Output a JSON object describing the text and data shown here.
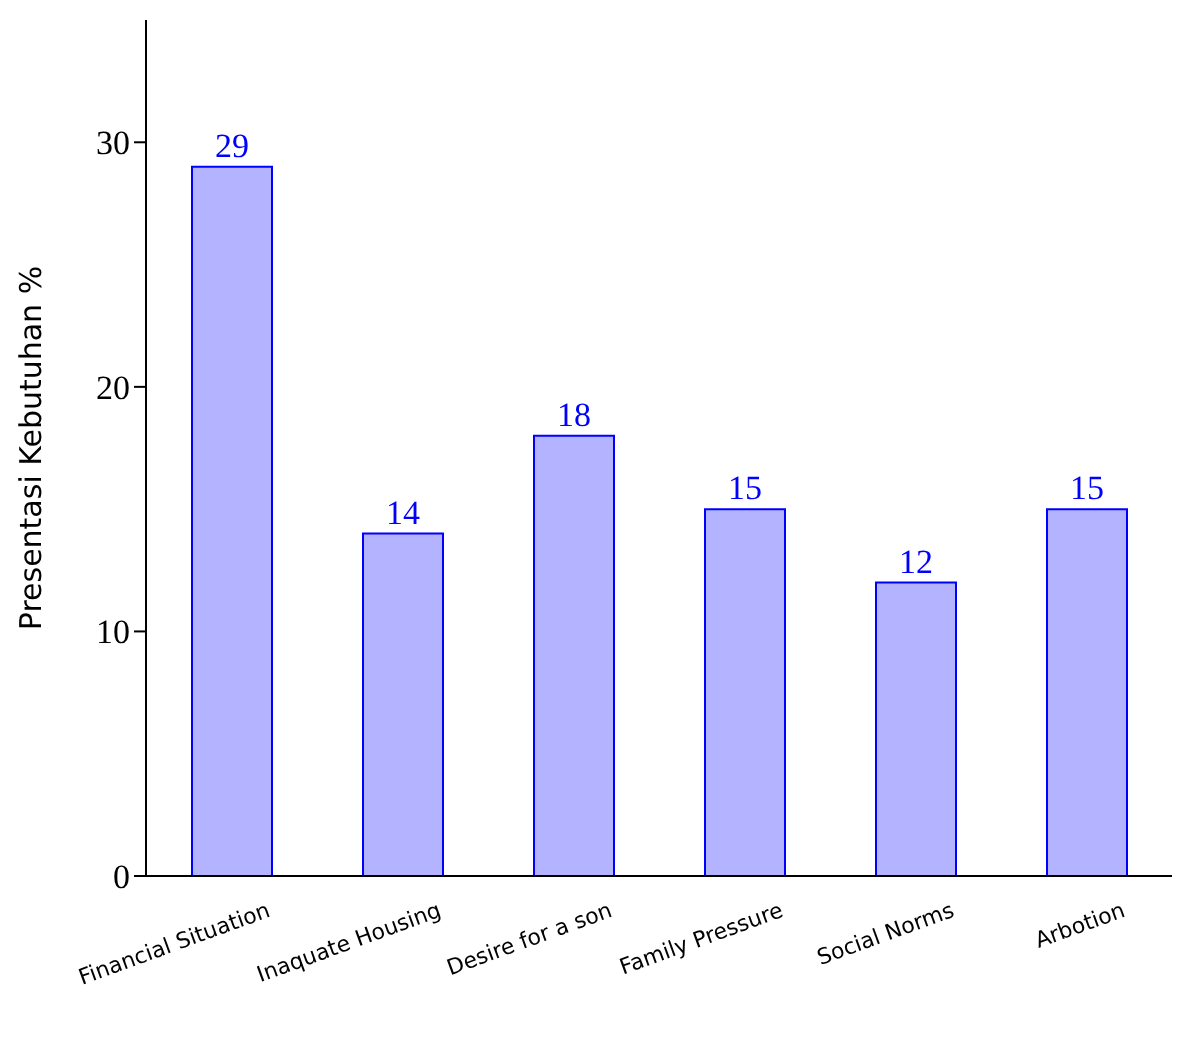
{
  "chart_data": {
    "type": "bar",
    "ylabel": "Presentasi Kebutuhan %",
    "categories": [
      "Financial Situation",
      "Inaquate Housing",
      "Desire for a son",
      "Family Pressure",
      "Social Norms",
      "Arbotion"
    ],
    "values": [
      29,
      14,
      18,
      15,
      12,
      15
    ],
    "color": "#b3b3ff",
    "ylim": [
      0,
      35
    ],
    "yticks": [
      0,
      10,
      20,
      30
    ],
    "data_labels": true
  }
}
